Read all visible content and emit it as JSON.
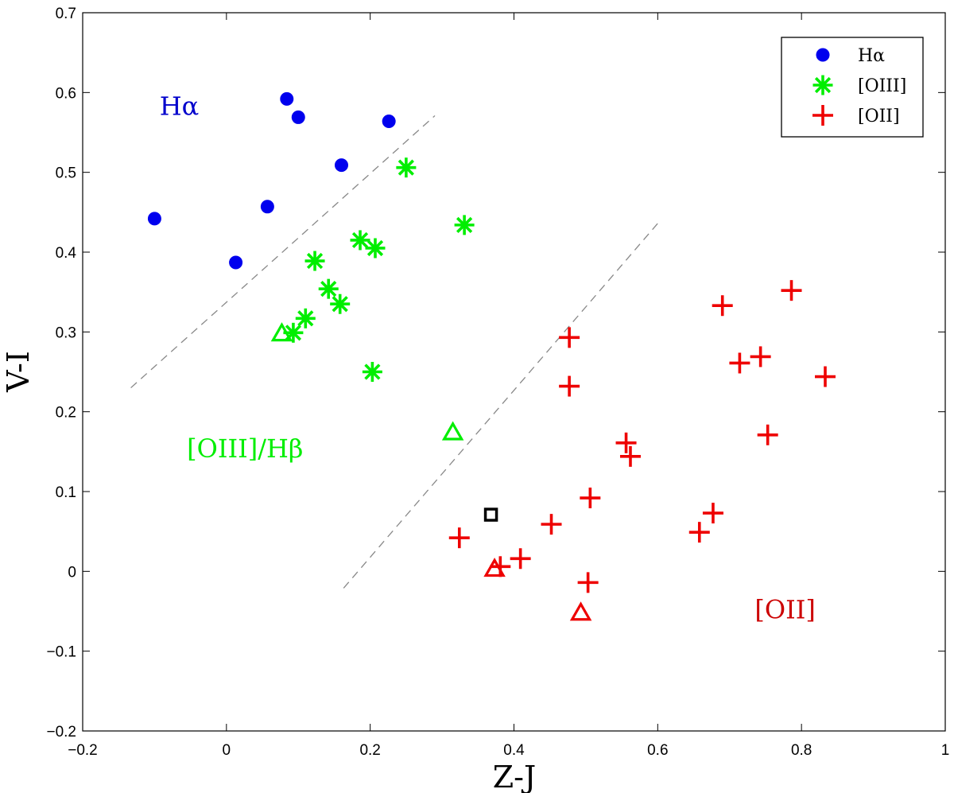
{
  "chart_data": {
    "type": "scatter",
    "title": "",
    "xlabel": "Z-J",
    "ylabel": "V-I",
    "xlim": [
      -0.2,
      1
    ],
    "ylim": [
      -0.2,
      0.7
    ],
    "xticks": [
      -0.2,
      0,
      0.2,
      0.4,
      0.6,
      0.8,
      1
    ],
    "xtick_labels": [
      "−0.2",
      "0",
      "0.2",
      "0.4",
      "0.6",
      "0.8",
      "1"
    ],
    "yticks": [
      -0.2,
      -0.1,
      0,
      0.1,
      0.2,
      0.3,
      0.4,
      0.5,
      0.6,
      0.7
    ],
    "ytick_labels": [
      "−0.2",
      "−0.1",
      "0",
      "0.1",
      "0.2",
      "0.3",
      "0.4",
      "0.5",
      "0.6",
      "0.7"
    ],
    "grid": false,
    "legend_position": "top-right",
    "series": [
      {
        "name": "Hα",
        "marker": "circle",
        "color": "#0000ee",
        "points": [
          {
            "x": -0.1,
            "y": 0.442
          },
          {
            "x": 0.013,
            "y": 0.387
          },
          {
            "x": 0.057,
            "y": 0.457
          },
          {
            "x": 0.084,
            "y": 0.592
          },
          {
            "x": 0.1,
            "y": 0.569
          },
          {
            "x": 0.16,
            "y": 0.509
          },
          {
            "x": 0.226,
            "y": 0.564
          }
        ]
      },
      {
        "name": "[OIII]",
        "marker": "asterisk",
        "color": "#00ee00",
        "points": [
          {
            "x": 0.25,
            "y": 0.506
          },
          {
            "x": 0.331,
            "y": 0.434
          },
          {
            "x": 0.186,
            "y": 0.415
          },
          {
            "x": 0.207,
            "y": 0.405
          },
          {
            "x": 0.123,
            "y": 0.389
          },
          {
            "x": 0.142,
            "y": 0.354
          },
          {
            "x": 0.158,
            "y": 0.335
          },
          {
            "x": 0.11,
            "y": 0.317
          },
          {
            "x": 0.093,
            "y": 0.299
          },
          {
            "x": 0.203,
            "y": 0.25
          }
        ]
      },
      {
        "name": "[OII]",
        "marker": "plus",
        "color": "#ee0000",
        "points": [
          {
            "x": 0.786,
            "y": 0.352
          },
          {
            "x": 0.69,
            "y": 0.333
          },
          {
            "x": 0.477,
            "y": 0.293
          },
          {
            "x": 0.743,
            "y": 0.269
          },
          {
            "x": 0.714,
            "y": 0.261
          },
          {
            "x": 0.833,
            "y": 0.244
          },
          {
            "x": 0.477,
            "y": 0.232
          },
          {
            "x": 0.753,
            "y": 0.171
          },
          {
            "x": 0.556,
            "y": 0.161
          },
          {
            "x": 0.562,
            "y": 0.144
          },
          {
            "x": 0.506,
            "y": 0.092
          },
          {
            "x": 0.677,
            "y": 0.073
          },
          {
            "x": 0.452,
            "y": 0.059
          },
          {
            "x": 0.658,
            "y": 0.049
          },
          {
            "x": 0.324,
            "y": 0.042
          },
          {
            "x": 0.409,
            "y": 0.016
          },
          {
            "x": 0.381,
            "y": 0.006
          },
          {
            "x": 0.503,
            "y": -0.014
          }
        ]
      }
    ],
    "extra_markers": [
      {
        "marker": "triangle",
        "color": "#00ee00",
        "points": [
          {
            "x": 0.077,
            "y": 0.298
          },
          {
            "x": 0.315,
            "y": 0.174
          }
        ]
      },
      {
        "marker": "triangle",
        "color": "#ee0000",
        "points": [
          {
            "x": 0.373,
            "y": 0.003
          },
          {
            "x": 0.493,
            "y": -0.052
          }
        ]
      },
      {
        "marker": "square",
        "color": "#000000",
        "points": [
          {
            "x": 0.368,
            "y": 0.071
          }
        ]
      }
    ],
    "dividers": [
      {
        "color": "#888888",
        "dash": true,
        "x": [
          -0.133,
          0.29
        ],
        "y": [
          0.23,
          0.571
        ]
      },
      {
        "color": "#888888",
        "dash": true,
        "x": [
          0.163,
          0.6
        ],
        "y": [
          -0.021,
          0.436
        ]
      }
    ],
    "annotations": [
      {
        "text": "Hα",
        "x": -0.093,
        "y": 0.572,
        "color": "#0000cc"
      },
      {
        "text": "[OIII]/Hβ",
        "x": -0.055,
        "y": 0.143,
        "color": "#00ee00"
      },
      {
        "text": "[OII]",
        "x": 0.735,
        "y": -0.059,
        "color": "#cc0000"
      }
    ]
  }
}
